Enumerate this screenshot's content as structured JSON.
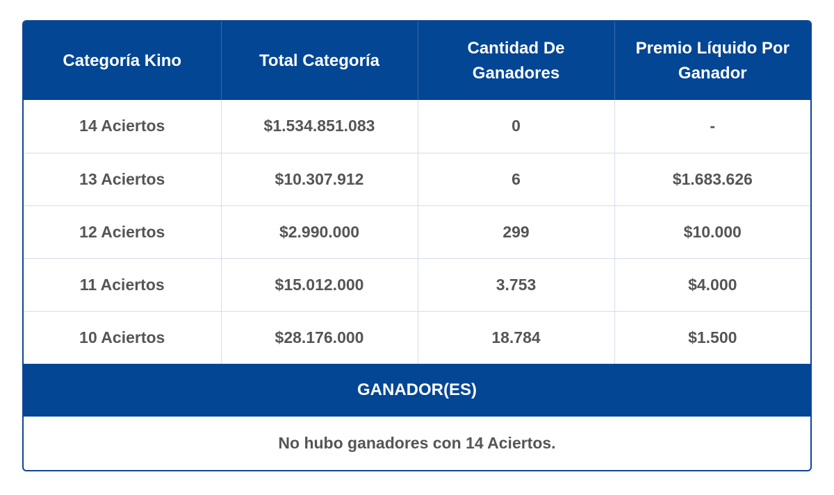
{
  "table": {
    "headers": [
      "Categoría Kino",
      "Total Categoría",
      "Cantidad De Ganadores",
      "Premio Líquido Por Ganador"
    ],
    "rows": [
      [
        "14 Aciertos",
        "$1.534.851.083",
        "0",
        "-"
      ],
      [
        "13 Aciertos",
        "$10.307.912",
        "6",
        "$1.683.626"
      ],
      [
        "12 Aciertos",
        "$2.990.000",
        "299",
        "$10.000"
      ],
      [
        "11 Aciertos",
        "$15.012.000",
        "3.753",
        "$4.000"
      ],
      [
        "10 Aciertos",
        "$28.176.000",
        "18.784",
        "$1.500"
      ]
    ]
  },
  "winners": {
    "title": "GANADOR(ES)",
    "message": "No hubo ganadores con 14 Aciertos."
  },
  "colors": {
    "header_bg": "#034694",
    "text": "#555555",
    "grid": "#d4dde8"
  }
}
